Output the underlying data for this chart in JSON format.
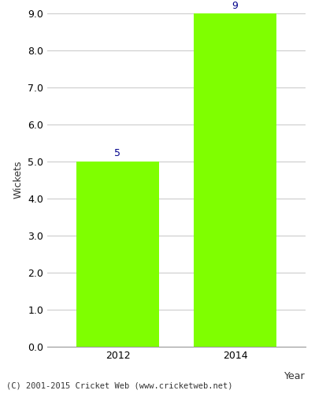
{
  "categories": [
    "2012",
    "2014"
  ],
  "values": [
    5,
    9
  ],
  "bar_color": "#7FFF00",
  "bar_edge_color": "#7FFF00",
  "label_color": "#00008B",
  "ylabel": "Wickets",
  "xlabel": "Year",
  "ylim_max": 9.0,
  "yticks": [
    0.0,
    1.0,
    2.0,
    3.0,
    4.0,
    5.0,
    6.0,
    7.0,
    8.0,
    9.0
  ],
  "footer_text": "(C) 2001-2015 Cricket Web (www.cricketweb.net)",
  "grid_color": "#cccccc",
  "background_color": "#ffffff",
  "bar_width": 0.7
}
